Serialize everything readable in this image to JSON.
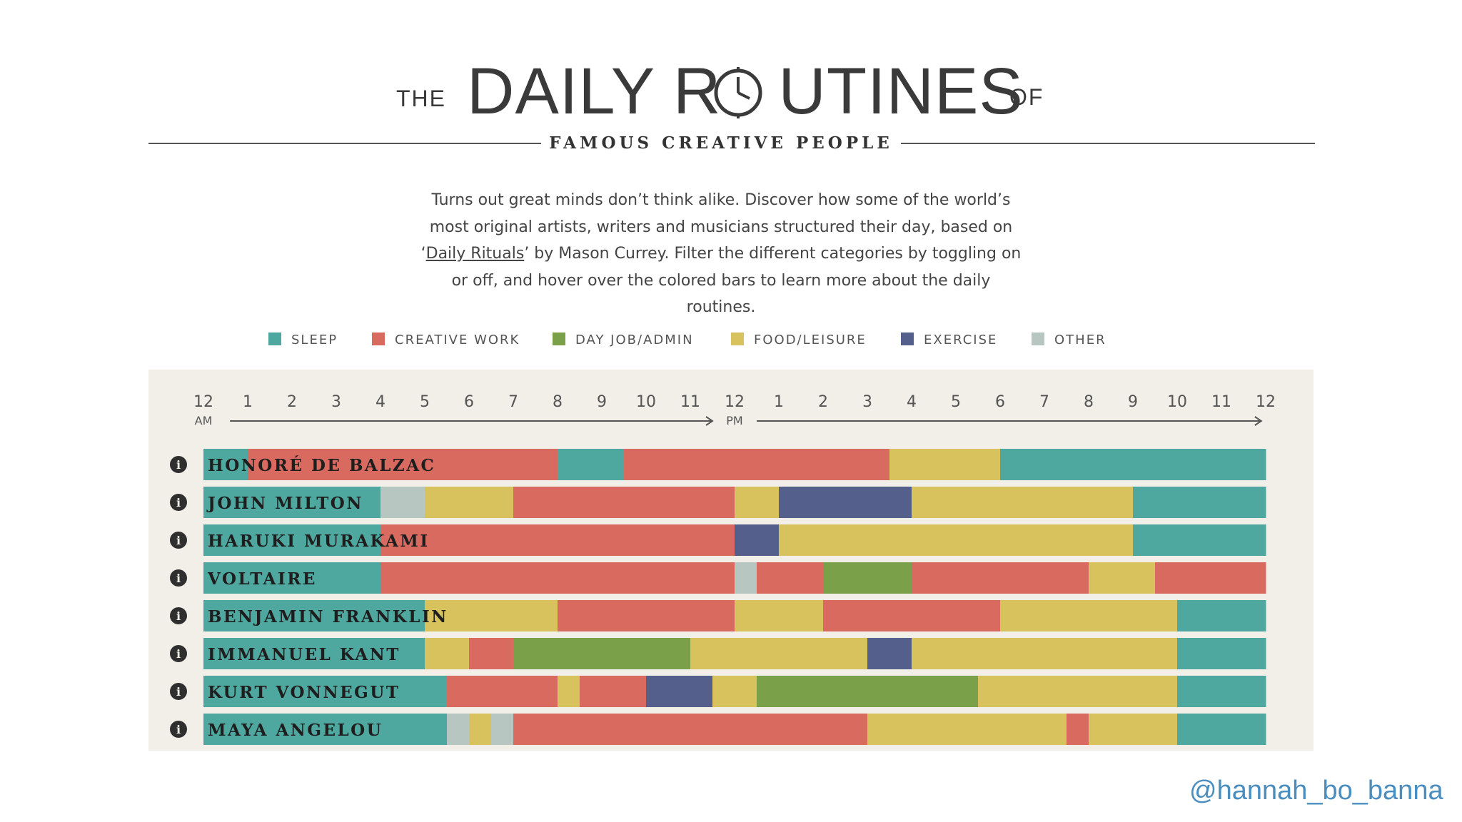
{
  "header": {
    "the": "THE",
    "title_part1": "DAILY R",
    "title_part2": "UTINES",
    "of": "OF",
    "subtitle": "FAMOUS CREATIVE PEOPLE"
  },
  "description": {
    "line1": "Turns out great minds don’t think alike. Discover how some of the world’s",
    "line2": "most original artists, writers and musicians structured their day, based on",
    "line3_pre": "‘",
    "line3_link": "Daily Rituals",
    "line3_post": "’ by Mason Currey. Filter the different categories by toggling on",
    "line4": "or off, and hover over the colored bars to learn more about the daily",
    "line5": "routines."
  },
  "legend": [
    {
      "label": "SLEEP",
      "color": "#4fa89f"
    },
    {
      "label": "CREATIVE WORK",
      "color": "#d96a60"
    },
    {
      "label": "DAY JOB/ADMIN",
      "color": "#7aa04a"
    },
    {
      "label": "FOOD/LEISURE",
      "color": "#d8c25e"
    },
    {
      "label": "EXERCISE",
      "color": "#555f8c"
    },
    {
      "label": "OTHER",
      "color": "#b8c6c2"
    }
  ],
  "handle": "@hannah_bo_banna",
  "chart_data": {
    "type": "bar",
    "orientation": "horizontal-stacked-timeline",
    "x_ticks": [
      "12",
      "1",
      "2",
      "3",
      "4",
      "5",
      "6",
      "7",
      "8",
      "9",
      "10",
      "11",
      "12",
      "1",
      "2",
      "3",
      "4",
      "5",
      "6",
      "7",
      "8",
      "9",
      "10",
      "11",
      "12"
    ],
    "am_label": "AM",
    "pm_label": "PM",
    "xlim": [
      0,
      24
    ],
    "category_colors": {
      "sleep": "#4fa89f",
      "creative": "#d96a60",
      "dayjob": "#7aa04a",
      "food": "#d8c25e",
      "exercise": "#555f8c",
      "other": "#b8c6c2"
    },
    "people": [
      {
        "name": "HONORÉ DE BALZAC",
        "segments": [
          [
            "sleep",
            0,
            1
          ],
          [
            "creative",
            1,
            8
          ],
          [
            "sleep",
            8,
            9.5
          ],
          [
            "creative",
            9.5,
            15.5
          ],
          [
            "food",
            15.5,
            18
          ],
          [
            "sleep",
            18,
            24
          ]
        ]
      },
      {
        "name": "JOHN MILTON",
        "segments": [
          [
            "sleep",
            0,
            4
          ],
          [
            "other",
            4,
            5
          ],
          [
            "food",
            5,
            7
          ],
          [
            "creative",
            7,
            12
          ],
          [
            "food",
            12,
            13
          ],
          [
            "exercise",
            13,
            16
          ],
          [
            "food",
            16,
            21
          ],
          [
            "sleep",
            21,
            24
          ]
        ]
      },
      {
        "name": "HARUKI MURAKAMI",
        "segments": [
          [
            "sleep",
            0,
            4
          ],
          [
            "creative",
            4,
            12
          ],
          [
            "exercise",
            12,
            13
          ],
          [
            "food",
            13,
            21
          ],
          [
            "sleep",
            21,
            24
          ]
        ]
      },
      {
        "name": "VOLTAIRE",
        "segments": [
          [
            "sleep",
            0,
            4
          ],
          [
            "creative",
            4,
            12
          ],
          [
            "other",
            12,
            12.5
          ],
          [
            "creative",
            12.5,
            14
          ],
          [
            "dayjob",
            14,
            16
          ],
          [
            "creative",
            16,
            20
          ],
          [
            "food",
            20,
            21.5
          ],
          [
            "creative",
            21.5,
            24
          ]
        ]
      },
      {
        "name": "BENJAMIN FRANKLIN",
        "segments": [
          [
            "sleep",
            0,
            5
          ],
          [
            "food",
            5,
            8
          ],
          [
            "creative",
            8,
            12
          ],
          [
            "food",
            12,
            14
          ],
          [
            "creative",
            14,
            18
          ],
          [
            "food",
            18,
            22
          ],
          [
            "sleep",
            22,
            24
          ]
        ]
      },
      {
        "name": "IMMANUEL KANT",
        "segments": [
          [
            "sleep",
            0,
            5
          ],
          [
            "food",
            5,
            6
          ],
          [
            "creative",
            6,
            7
          ],
          [
            "dayjob",
            7,
            11
          ],
          [
            "food",
            11,
            15
          ],
          [
            "exercise",
            15,
            16
          ],
          [
            "food",
            16,
            22
          ],
          [
            "sleep",
            22,
            24
          ]
        ]
      },
      {
        "name": "KURT VONNEGUT",
        "segments": [
          [
            "sleep",
            0,
            5.5
          ],
          [
            "creative",
            5.5,
            8
          ],
          [
            "food",
            8,
            8.5
          ],
          [
            "creative",
            8.5,
            10
          ],
          [
            "exercise",
            10,
            11.5
          ],
          [
            "food",
            11.5,
            12.5
          ],
          [
            "dayjob",
            12.5,
            17.5
          ],
          [
            "food",
            17.5,
            22
          ],
          [
            "sleep",
            22,
            24
          ]
        ]
      },
      {
        "name": "MAYA ANGELOU",
        "segments": [
          [
            "sleep",
            0,
            5.5
          ],
          [
            "other",
            5.5,
            6
          ],
          [
            "food",
            6,
            6.5
          ],
          [
            "other",
            6.5,
            7
          ],
          [
            "creative",
            7,
            15
          ],
          [
            "food",
            15,
            19.5
          ],
          [
            "creative",
            19.5,
            20
          ],
          [
            "food",
            20,
            22
          ],
          [
            "sleep",
            22,
            24
          ]
        ]
      }
    ]
  }
}
